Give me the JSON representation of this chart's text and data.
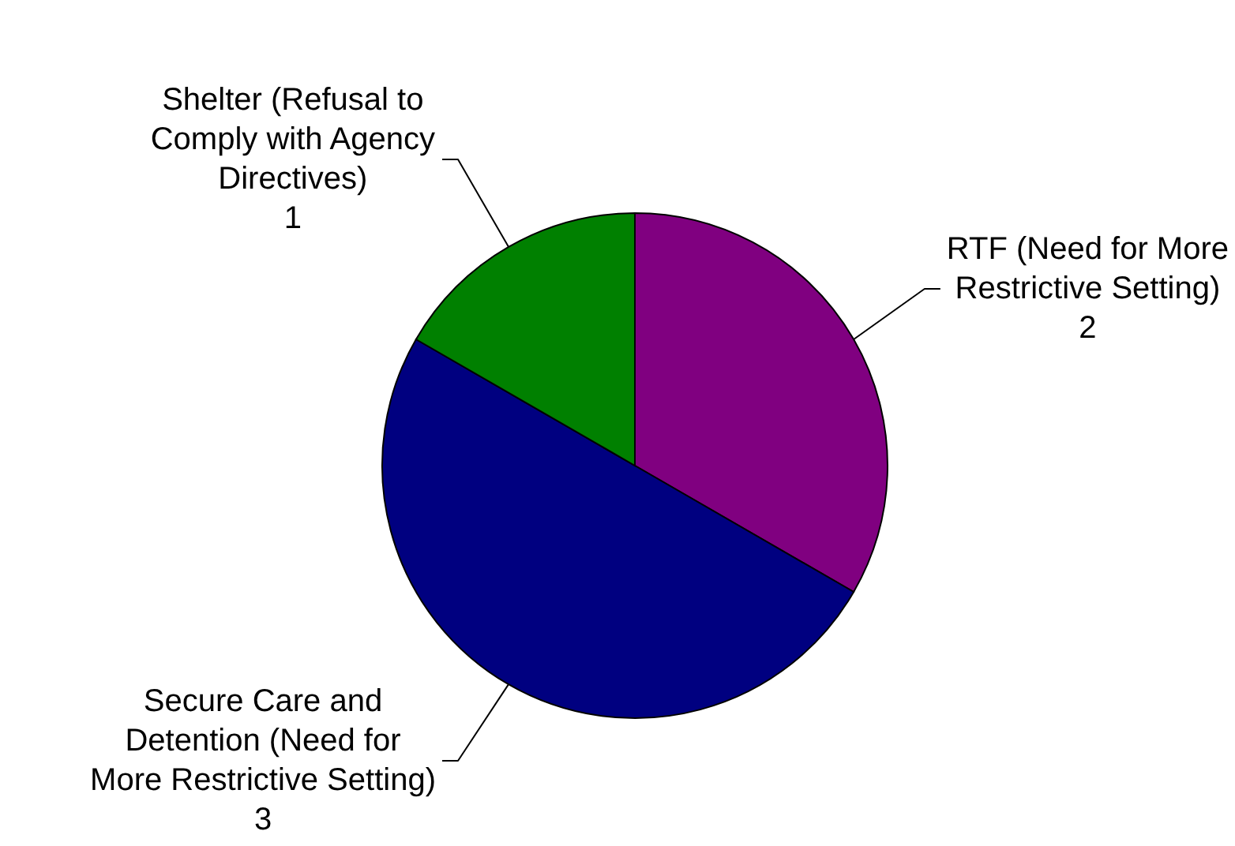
{
  "chart_data": {
    "type": "pie",
    "categories": [
      "RTF (Need for More Restrictive Setting)",
      "Secure Care and Detention (Need for More Restrictive Setting)",
      "Shelter (Refusal to Comply with Agency Directives)"
    ],
    "values": [
      2,
      3,
      1
    ],
    "colors": [
      "#800080",
      "#000080",
      "#008000"
    ],
    "data_labels": true
  }
}
